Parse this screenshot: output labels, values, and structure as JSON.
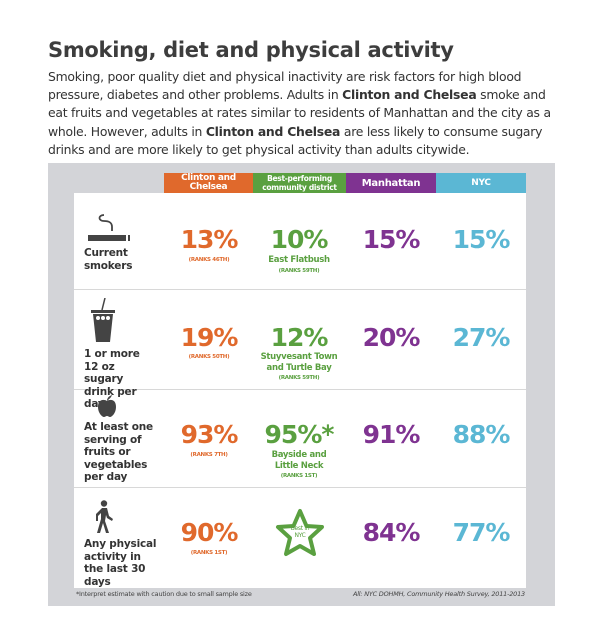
{
  "title": "Smoking, diet and physical activity",
  "intro": {
    "p1": "Smoking, poor quality diet and physical inactivity are risk factors for high blood pressure, diabetes and other problems. Adults in ",
    "b1": "Clinton and Chelsea",
    "p2": " smoke and eat fruits and vegetables at rates similar to residents of Manhattan and the city as a whole. However, adults in ",
    "b2": "Clinton and Chelsea",
    "p3": " are less likely to consume sugary drinks and are more likely to get physical activity than adults citywide."
  },
  "colors": {
    "district": "#e0692c",
    "best": "#5aa040",
    "manhattan": "#7f3391",
    "nyc": "#5bb7d4",
    "panel": "#d3d4d8"
  },
  "columns": [
    "Clinton and Chelsea",
    "Best-performing community district",
    "Manhattan",
    "NYC"
  ],
  "rows": [
    {
      "icon": "cigarette-icon",
      "label": "Current smokers",
      "district": "13%",
      "district_rank": "(RANKS 46TH)",
      "best": "10%",
      "best_name": "East Flatbush",
      "best_rank": "(RANKS 59TH)",
      "manhattan": "15%",
      "nyc": "15%"
    },
    {
      "icon": "soda-cup-icon",
      "label": "1 or more 12 oz sugary drink per day",
      "district": "19%",
      "district_rank": "(RANKS 50TH)",
      "best": "12%",
      "best_name": "Stuyvesant Town and Turtle Bay",
      "best_rank": "(RANKS 59TH)",
      "manhattan": "20%",
      "nyc": "27%"
    },
    {
      "icon": "apple-icon",
      "label": "At least one serving of fruits or vegetables per day",
      "district": "93%",
      "district_rank": "(RANKS 7TH)",
      "best": "95%*",
      "best_name": "Bayside and Little Neck",
      "best_rank": "(RANKS 1ST)",
      "manhattan": "91%",
      "nyc": "88%"
    },
    {
      "icon": "walking-person-icon",
      "label": "Any physical activity in the last 30 days",
      "district": "90%",
      "district_rank": "(RANKS 1ST)",
      "best": "Best in NYC",
      "manhattan": "84%",
      "nyc": "77%"
    }
  ],
  "footnote": "*Interpret estimate with caution due to small sample size",
  "source": "All: NYC DOHMH, Community Health Survey, 2011-2013"
}
